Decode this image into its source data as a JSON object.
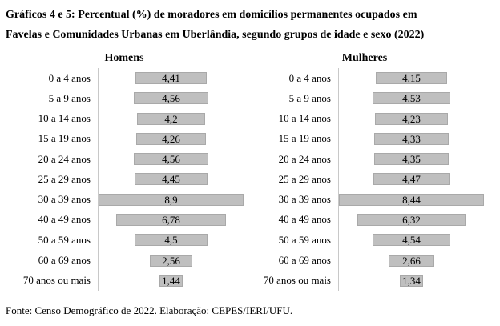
{
  "page": {
    "title_lines": [
      "Gráficos 4 e 5: Percentual (%) de moradores em domicílios permanentes ocupados em",
      "Favelas e Comunidades Urbanas em Uberlândia, segundo grupos de idade e sexo (2022)"
    ],
    "footer": "Fonte: Censo Demográfico de 2022. Elaboração: CEPES/IERI/UFU."
  },
  "colors": {
    "bar_fill": "#bfbfbf",
    "bar_border": "#a9a9a9",
    "axis_line": "#c8c8c8",
    "text": "#000000",
    "background": "#ffffff"
  },
  "chart_data": [
    {
      "type": "bar",
      "orientation": "horizontal-centered",
      "title": "Homens",
      "categories": [
        "0 a 4 anos",
        "5 a 9 anos",
        "10 a 14 anos",
        "15 a 19 anos",
        "20 a 24 anos",
        "25 a 29 anos",
        "30 a 39 anos",
        "40 a 49 anos",
        "50 a 59 anos",
        "60 a 69 anos",
        "70 anos ou mais"
      ],
      "values": [
        4.41,
        4.56,
        4.2,
        4.26,
        4.56,
        4.45,
        8.9,
        6.78,
        4.5,
        2.56,
        1.44
      ],
      "value_labels": [
        "4,41",
        "4,56",
        "4,2",
        "4,26",
        "4,56",
        "4,45",
        "8,9",
        "6,78",
        "4,5",
        "2,56",
        "1,44"
      ],
      "xlabel": "",
      "ylabel": "",
      "xlim": [
        0,
        8.9
      ],
      "grid": false,
      "legend": "none",
      "data_labels": "inside-center"
    },
    {
      "type": "bar",
      "orientation": "horizontal-centered",
      "title": "Mulheres",
      "categories": [
        "0 a 4 anos",
        "5 a 9 anos",
        "10 a 14 anos",
        "15 a 19 anos",
        "20 a 24 anos",
        "25 a 29 anos",
        "30 a 39 anos",
        "40 a 49 anos",
        "50 a 59 anos",
        "60 a 69 anos",
        "70 anos ou mais"
      ],
      "values": [
        4.15,
        4.53,
        4.23,
        4.33,
        4.35,
        4.47,
        8.44,
        6.32,
        4.54,
        2.66,
        1.34
      ],
      "value_labels": [
        "4,15",
        "4,53",
        "4,23",
        "4,33",
        "4,35",
        "4,47",
        "8,44",
        "6,32",
        "4,54",
        "2,66",
        "1,34"
      ],
      "xlabel": "",
      "ylabel": "",
      "xlim": [
        0,
        8.44
      ],
      "grid": false,
      "legend": "none",
      "data_labels": "inside-center"
    }
  ]
}
